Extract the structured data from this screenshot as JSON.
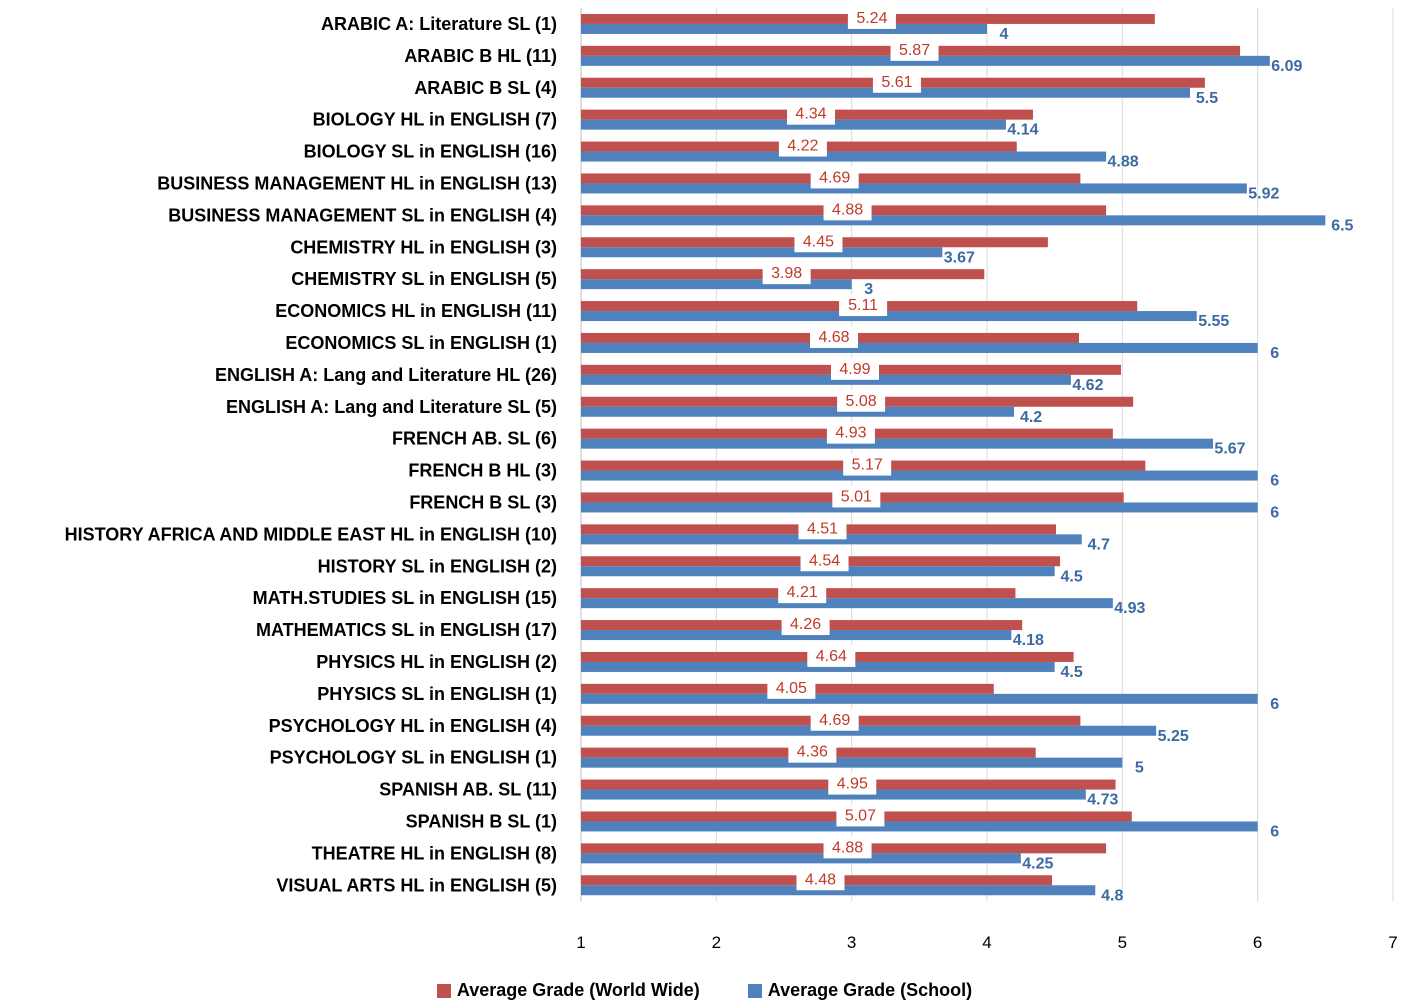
{
  "chart_data": {
    "type": "bar",
    "orientation": "horizontal",
    "categories": [
      "ARABIC A: Literature SL (1)",
      "ARABIC B HL (11)",
      "ARABIC B SL (4)",
      "BIOLOGY HL in ENGLISH (7)",
      "BIOLOGY SL in ENGLISH (16)",
      "BUSINESS MANAGEMENT HL in ENGLISH (13)",
      "BUSINESS MANAGEMENT SL in ENGLISH (4)",
      "CHEMISTRY  HL in ENGLISH (3)",
      "CHEMISTRY  SL in ENGLISH (5)",
      "ECONOMICS HL in ENGLISH (11)",
      "ECONOMICS SL in ENGLISH (1)",
      "ENGLISH  A: Lang  and  Literature HL (26)",
      "ENGLISH  A: Lang  and  Literature SL (5)",
      "FRENCH AB. SL (6)",
      "FRENCH B HL (3)",
      "FRENCH B SL (3)",
      "HISTORY  AFRICA AND MIDDLE EAST HL in ENGLISH (10)",
      "HISTORY  SL in ENGLISH (2)",
      "MATH.STUDIES SL in ENGLISH (15)",
      "MATHEMATICS SL in ENGLISH (17)",
      "PHYSICS HL in ENGLISH (2)",
      "PHYSICS SL in ENGLISH (1)",
      "PSYCHOLOGY HL in ENGLISH (4)",
      "PSYCHOLOGY SL in ENGLISH (1)",
      "SPANISH AB. SL (11)",
      "SPANISH B SL (1)",
      "THEATRE  HL in ENGLISH (8)",
      "VISUAL ARTS HL in ENGLISH (5)"
    ],
    "series": [
      {
        "name": "Average Grade (World Wide)",
        "color": "#c0504d",
        "values": [
          5.24,
          5.87,
          5.61,
          4.34,
          4.22,
          4.69,
          4.88,
          4.45,
          3.98,
          5.11,
          4.68,
          4.99,
          5.08,
          4.93,
          5.17,
          5.01,
          4.51,
          4.54,
          4.21,
          4.26,
          4.64,
          4.05,
          4.69,
          4.36,
          4.95,
          5.07,
          4.88,
          4.48
        ],
        "labels": [
          "5.24",
          "5.87",
          "5.61",
          "4.34",
          "4.22",
          "4.69",
          "4.88",
          "4.45",
          "3.98",
          "5.11",
          "4.68",
          "4.99",
          "5.08",
          "4.93",
          "5.17",
          "5.01",
          "4.51",
          "4.54",
          "4.21",
          "4.26",
          "4.64",
          "4.05",
          "4.69",
          "4.36",
          "4.95",
          "5.07",
          "4.88",
          "4.48"
        ]
      },
      {
        "name": "Average Grade (School)",
        "color": "#4f81bd",
        "values": [
          4,
          6.09,
          5.5,
          4.14,
          4.88,
          5.92,
          6.5,
          3.67,
          3,
          5.55,
          6,
          4.62,
          4.2,
          5.67,
          6,
          6,
          4.7,
          4.5,
          4.93,
          4.18,
          4.5,
          6,
          5.25,
          5,
          4.73,
          6,
          4.25,
          4.8
        ],
        "labels": [
          "4",
          "6.09",
          "5.5",
          "4.14",
          "4.88",
          "5.92",
          "6.5",
          "3.67",
          "3",
          "5.55",
          "6",
          "4.62",
          "4.2",
          "5.67",
          "6",
          "6",
          "4.7",
          "4.5",
          "4.93",
          "4.18",
          "4.5",
          "6",
          "5.25",
          "5",
          "4.73",
          "6",
          "4.25",
          "4.8"
        ]
      }
    ],
    "xlim": [
      1,
      7
    ],
    "xticks": [
      "1",
      "2",
      "3",
      "4",
      "5",
      "6",
      "7"
    ],
    "grid": true,
    "legend_position": "bottom"
  }
}
